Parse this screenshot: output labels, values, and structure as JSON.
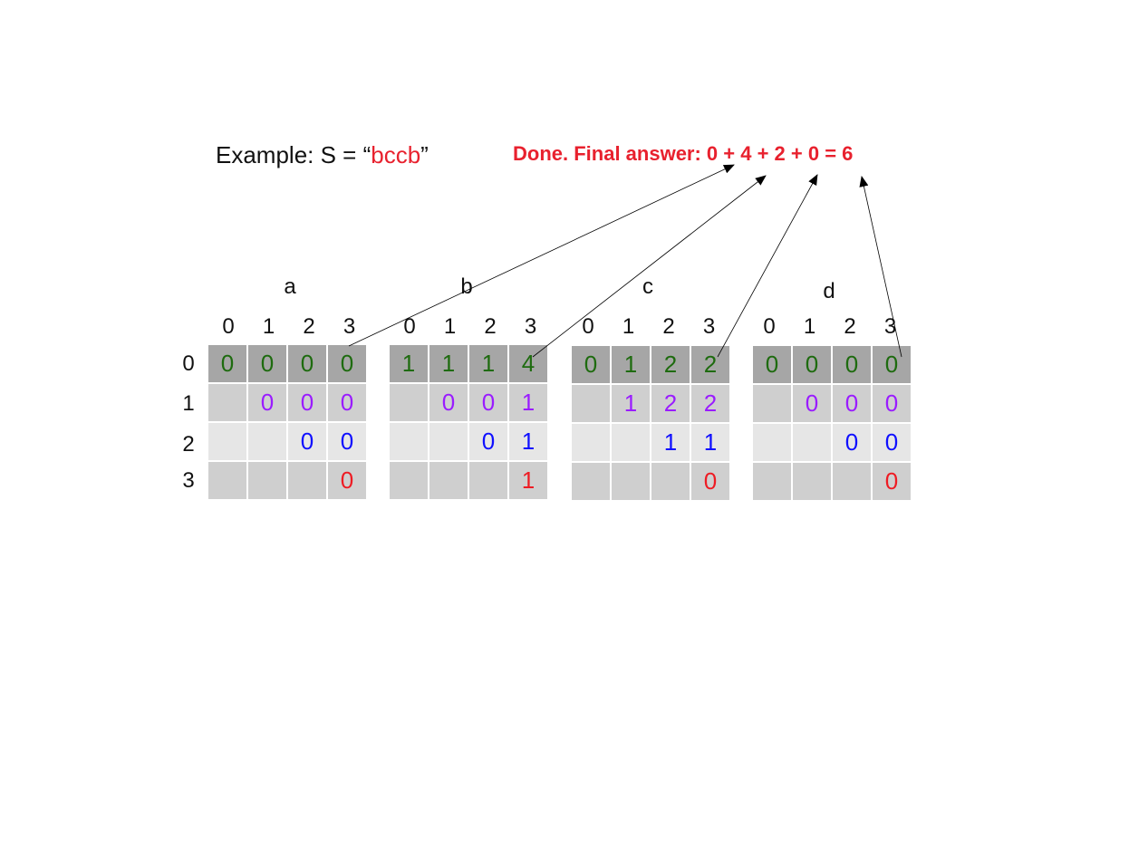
{
  "title": {
    "prefix": "Example: S = “",
    "string": "bccb",
    "suffix": "”"
  },
  "answer": "Done. Final answer: 0 + 4 + 2 + 0 = 6",
  "row_indices": [
    "0",
    "1",
    "2",
    "3"
  ],
  "col_indices": [
    "0",
    "1",
    "2",
    "3"
  ],
  "colors": {
    "row0": "#1e6b0f",
    "row1": "#9a1cff",
    "row2": "#1010ff",
    "row3": "#ee1c24",
    "highlight": "#e8212e"
  },
  "tables": [
    {
      "letter": "a",
      "rows": [
        [
          "0",
          "0",
          "0",
          "0"
        ],
        [
          "",
          "0",
          "0",
          "0"
        ],
        [
          "",
          "",
          "0",
          "0"
        ],
        [
          "",
          "",
          "",
          "0"
        ]
      ]
    },
    {
      "letter": "b",
      "rows": [
        [
          "1",
          "1",
          "1",
          "4"
        ],
        [
          "",
          "0",
          "0",
          "1"
        ],
        [
          "",
          "",
          "0",
          "1"
        ],
        [
          "",
          "",
          "",
          "1"
        ]
      ]
    },
    {
      "letter": "c",
      "rows": [
        [
          "0",
          "1",
          "2",
          "2"
        ],
        [
          "",
          "1",
          "2",
          "2"
        ],
        [
          "",
          "",
          "1",
          "1"
        ],
        [
          "",
          "",
          "",
          "0"
        ]
      ]
    },
    {
      "letter": "d",
      "rows": [
        [
          "0",
          "0",
          "0",
          "0"
        ],
        [
          "",
          "0",
          "0",
          "0"
        ],
        [
          "",
          "",
          "0",
          "0"
        ],
        [
          "",
          "",
          "",
          "0"
        ]
      ]
    }
  ]
}
